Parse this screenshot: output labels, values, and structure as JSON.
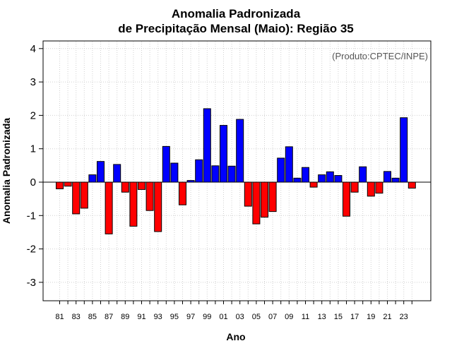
{
  "chart_data": {
    "type": "bar",
    "title_line1": "Anomalia Padronizada",
    "title_line2": "de Precipitação Mensal (Maio): Região 35",
    "xlabel": "Ano",
    "ylabel": "Anomalia Padronizada",
    "credit": "(Produto:CPTEC/INPE)",
    "ylim": [
      -3.6,
      4.2
    ],
    "yticks": [
      -3,
      -2,
      -1,
      0,
      1,
      2,
      3,
      4
    ],
    "categories": [
      "1981",
      "1982",
      "1983",
      "1984",
      "1985",
      "1986",
      "1987",
      "1988",
      "1989",
      "1990",
      "1991",
      "1992",
      "1993",
      "1994",
      "1995",
      "1996",
      "1997",
      "1998",
      "1999",
      "2000",
      "2001",
      "2002",
      "2003",
      "2004",
      "2005",
      "2006",
      "2007",
      "2008",
      "2009",
      "2010",
      "2011",
      "2012",
      "2013",
      "2014",
      "2015",
      "2016",
      "2017",
      "2018",
      "2019",
      "2020",
      "2021",
      "2022",
      "2023",
      "2024"
    ],
    "xtick_labels": [
      "81",
      "83",
      "85",
      "87",
      "89",
      "91",
      "93",
      "95",
      "97",
      "99",
      "01",
      "03",
      "05",
      "07",
      "09",
      "11",
      "13",
      "15",
      "17",
      "19",
      "21",
      "23"
    ],
    "values": [
      -0.2,
      -0.12,
      -0.95,
      -0.78,
      0.22,
      0.62,
      -1.55,
      0.53,
      -0.3,
      -1.32,
      -0.22,
      -0.85,
      -1.48,
      1.07,
      0.57,
      -0.68,
      0.05,
      0.67,
      2.2,
      0.49,
      1.7,
      0.48,
      1.88,
      -0.72,
      -1.25,
      -1.05,
      -0.88,
      0.72,
      1.06,
      0.12,
      0.44,
      -0.15,
      0.22,
      0.31,
      0.2,
      -1.02,
      -0.3,
      0.46,
      -0.42,
      -0.33,
      0.32,
      0.12,
      1.93,
      -0.18
    ],
    "colors": {
      "positive": "#0000ff",
      "negative": "#ff0000"
    }
  }
}
